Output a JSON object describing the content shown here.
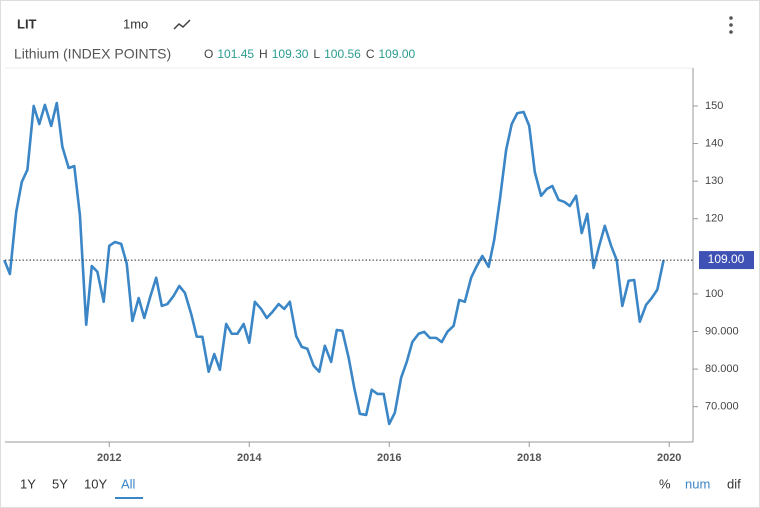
{
  "header": {
    "symbol": "LIT",
    "interval": "1mo"
  },
  "chart_data": {
    "type": "line",
    "title": "Lithium (INDEX POINTS)",
    "ohlc": [
      {
        "name": "O",
        "value": 101.45,
        "label": "101.45"
      },
      {
        "name": "H",
        "value": 109.3,
        "label": "109.30"
      },
      {
        "name": "L",
        "value": 100.56,
        "label": "100.56"
      },
      {
        "name": "C",
        "value": 109.0,
        "label": "109.00"
      }
    ],
    "x": [
      2010.5,
      2010.58,
      2010.67,
      2010.75,
      2010.83,
      2010.92,
      2011.0,
      2011.08,
      2011.17,
      2011.25,
      2011.33,
      2011.42,
      2011.5,
      2011.58,
      2011.67,
      2011.75,
      2011.83,
      2011.92,
      2012.0,
      2012.08,
      2012.17,
      2012.25,
      2012.33,
      2012.42,
      2012.5,
      2012.58,
      2012.67,
      2012.75,
      2012.83,
      2012.92,
      2013.0,
      2013.08,
      2013.17,
      2013.25,
      2013.33,
      2013.42,
      2013.5,
      2013.58,
      2013.67,
      2013.75,
      2013.83,
      2013.92,
      2014.0,
      2014.08,
      2014.17,
      2014.25,
      2014.33,
      2014.42,
      2014.5,
      2014.58,
      2014.67,
      2014.75,
      2014.83,
      2014.92,
      2015.0,
      2015.08,
      2015.17,
      2015.25,
      2015.33,
      2015.42,
      2015.5,
      2015.58,
      2015.67,
      2015.75,
      2015.83,
      2015.92,
      2016.0,
      2016.08,
      2016.17,
      2016.25,
      2016.33,
      2016.42,
      2016.5,
      2016.58,
      2016.67,
      2016.75,
      2016.83,
      2016.92,
      2017.0,
      2017.08,
      2017.17,
      2017.25,
      2017.33,
      2017.42,
      2017.5,
      2017.58,
      2017.67,
      2017.75,
      2017.83,
      2017.92,
      2018.0,
      2018.08,
      2018.17,
      2018.25,
      2018.33,
      2018.42,
      2018.5,
      2018.58,
      2018.67,
      2018.75,
      2018.83,
      2018.92,
      2019.0,
      2019.08,
      2019.17,
      2019.25,
      2019.33,
      2019.42,
      2019.5,
      2019.58,
      2019.67,
      2019.75,
      2019.83,
      2019.92
    ],
    "series": [
      {
        "color": "#3b86c6",
        "values": [
          109.0,
          105.3,
          121.8,
          129.8,
          133.0,
          150.0,
          145.2,
          150.3,
          144.7,
          150.8,
          139.1,
          133.5,
          134.0,
          121.0,
          91.8,
          107.4,
          105.9,
          97.9,
          112.8,
          113.8,
          113.3,
          108.0,
          92.8,
          98.9,
          93.6,
          98.9,
          104.3,
          96.8,
          97.3,
          99.5,
          102.1,
          100.3,
          94.7,
          88.6,
          88.6,
          79.3,
          84.0,
          79.8,
          92.0,
          89.4,
          89.4,
          92.0,
          87.0,
          97.9,
          96.0,
          93.6,
          95.2,
          97.3,
          96.0,
          97.9,
          88.8,
          85.9,
          85.4,
          80.9,
          79.3,
          86.2,
          81.9,
          90.4,
          90.2,
          83.0,
          75.0,
          68.1,
          67.8,
          74.5,
          73.4,
          73.4,
          65.4,
          68.4,
          77.7,
          81.9,
          87.2,
          89.4,
          89.9,
          88.3,
          88.3,
          87.2,
          89.9,
          91.5,
          98.4,
          97.9,
          104.3,
          107.4,
          110.1,
          107.2,
          114.4,
          125.0,
          138.3,
          145.2,
          148.1,
          148.4,
          144.7,
          132.4,
          126.1,
          127.9,
          128.7,
          125.0,
          124.5,
          123.4,
          126.1,
          116.2,
          121.3,
          106.9,
          112.8,
          118.1,
          112.8,
          109.0,
          96.8,
          103.5,
          103.7,
          92.6,
          97.1,
          98.9,
          101.1,
          109.0
        ]
      }
    ],
    "xlim": [
      2010.51,
      2020.34
    ],
    "xticks": [
      2012,
      2014,
      2016,
      2018,
      2020
    ],
    "ylim": [
      60.6,
      160.1
    ],
    "yticks": [
      {
        "value": 70,
        "label": "70.000"
      },
      {
        "value": 80,
        "label": "80.000"
      },
      {
        "value": 90,
        "label": "90.000"
      },
      100,
      120,
      130,
      140,
      150
    ],
    "price_line": {
      "value": 109.0,
      "label": "109.00",
      "color": "#3f51b5"
    },
    "grid": false
  },
  "footer": {
    "ranges": [
      "1Y",
      "5Y",
      "10Y",
      "All"
    ],
    "selected_range": 3,
    "modes": [
      "%",
      "num",
      "dif"
    ],
    "selected_mode": 1
  }
}
